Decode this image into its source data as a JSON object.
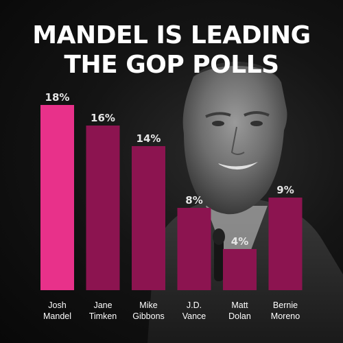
{
  "title_lines": [
    "MANDEL IS LEADING",
    "THE GOP POLLS"
  ],
  "colors": {
    "background": "#0b0b0b",
    "highlight_bar": "#e8318a",
    "bar": "#8c1450",
    "title": "#ffffff"
  },
  "chart_data": {
    "type": "bar",
    "title": "MANDEL IS LEADING THE GOP POLLS",
    "categories": [
      [
        "Josh",
        "Mandel"
      ],
      [
        "Jane",
        "Timken"
      ],
      [
        "Mike",
        "Gibbons"
      ],
      [
        "J.D.",
        "Vance"
      ],
      [
        "Matt",
        "Dolan"
      ],
      [
        "Bernie",
        "Moreno"
      ]
    ],
    "values": [
      18,
      16,
      14,
      8,
      4,
      9
    ],
    "value_labels": [
      "18%",
      "16%",
      "14%",
      "8%",
      "4%",
      "9%"
    ],
    "highlight_index": 0,
    "ylim": [
      0,
      18
    ],
    "grid": false,
    "legend": "none"
  }
}
